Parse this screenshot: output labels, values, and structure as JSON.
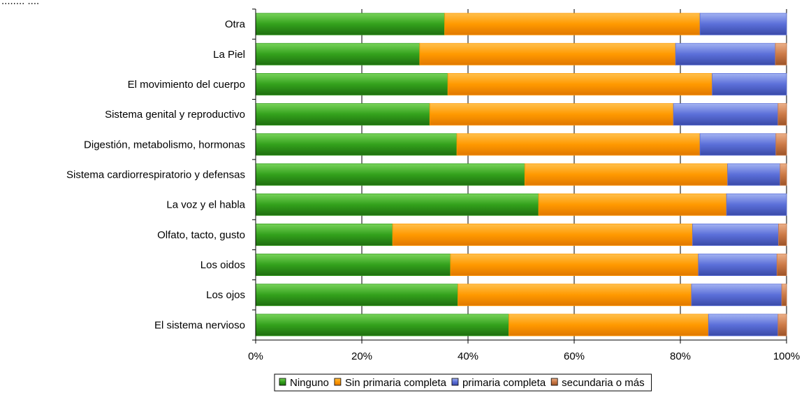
{
  "header_fragment": "........ ....",
  "chart_data": {
    "type": "bar",
    "orientation": "horizontal",
    "stacked": "percent",
    "categories": [
      "Otra",
      "La Piel",
      "El movimiento del cuerpo",
      "Sistema genital y reproductivo",
      "Digestión,  metabolismo,  hormonas",
      "Sistema cardiorrespiratorio y  defensas",
      "La voz y el habla",
      "Olfato, tacto, gusto",
      "Los oidos",
      "Los ojos",
      "El sistema nervioso"
    ],
    "series": [
      {
        "name": "Ninguno",
        "color": "#33a11c",
        "values": [
          35.6,
          30.9,
          36.2,
          32.8,
          37.9,
          50.7,
          53.3,
          25.8,
          36.7,
          38.1,
          47.7
        ]
      },
      {
        "name": "Sin primaria completa",
        "color": "#ff9900",
        "values": [
          48.1,
          48.2,
          49.8,
          45.9,
          45.8,
          38.2,
          35.4,
          56.5,
          46.7,
          44.0,
          37.6
        ]
      },
      {
        "name": "primaria completa",
        "color": "#5b6fd9",
        "values": [
          16.3,
          18.8,
          14.0,
          19.7,
          14.3,
          9.9,
          11.3,
          16.2,
          14.8,
          17.0,
          13.1
        ]
      },
      {
        "name": "secundaria o más",
        "color": "#cc7a47",
        "values": [
          0.0,
          2.1,
          0.0,
          1.6,
          2.0,
          1.2,
          0.0,
          1.5,
          1.8,
          0.9,
          1.6
        ]
      }
    ],
    "xlim": [
      0,
      100
    ],
    "x_ticks": [
      "0%",
      "20%",
      "40%",
      "60%",
      "80%",
      "100%"
    ],
    "grid": "vertical",
    "legend_position": "bottom"
  }
}
